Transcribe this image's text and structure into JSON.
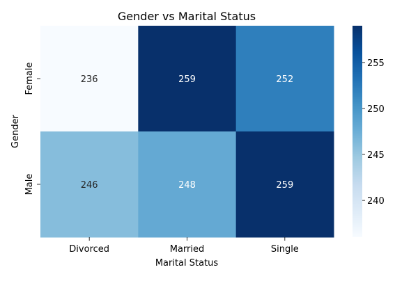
{
  "chart_data": {
    "type": "heatmap",
    "title": "Gender vs Marital Status",
    "xlabel": "Marital Status",
    "ylabel": "Gender",
    "x_categories": [
      "Divorced",
      "Married",
      "Single"
    ],
    "y_categories": [
      "Female",
      "Male"
    ],
    "values": [
      [
        236,
        259,
        252
      ],
      [
        246,
        248,
        259
      ]
    ],
    "colorbar": {
      "colormap": "Blues",
      "vmin": 236,
      "vmax": 259,
      "ticks": [
        240,
        245,
        250,
        255
      ],
      "low_color": "#f7fbff",
      "high_color": "#08306b"
    },
    "annotations": true
  }
}
